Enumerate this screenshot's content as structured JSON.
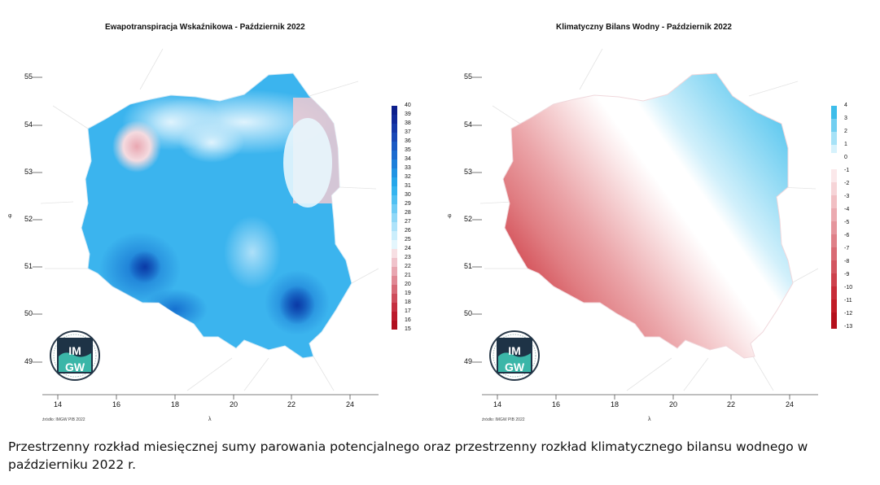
{
  "maps": [
    {
      "title": "Ewapotranspiracja Wskaźnikowa - Październik 2022",
      "lat_ticks": [
        "55",
        "54",
        "53",
        "52",
        "51",
        "50",
        "49"
      ],
      "lon_ticks": [
        "14",
        "16",
        "18",
        "20",
        "22",
        "24"
      ],
      "legend_values": [
        "40",
        "39",
        "38",
        "37",
        "36",
        "35",
        "34",
        "33",
        "32",
        "31",
        "30",
        "29",
        "28",
        "27",
        "26",
        "25",
        "24",
        "23",
        "22",
        "21",
        "20",
        "19",
        "18",
        "17",
        "16",
        "15"
      ],
      "source": "źródło: IMGW PIB 2022",
      "xlabel": "λ",
      "ylabel": "φ",
      "logo": "IMGW"
    },
    {
      "title": "Klimatyczny Bilans Wodny - Październik 2022",
      "lat_ticks": [
        "55",
        "54",
        "53",
        "52",
        "51",
        "50",
        "49"
      ],
      "lon_ticks": [
        "14",
        "16",
        "18",
        "20",
        "22",
        "24"
      ],
      "legend_values": [
        "4",
        "3",
        "2",
        "1",
        "0",
        "-1",
        "-2",
        "-3",
        "-4",
        "-5",
        "-6",
        "-7",
        "-8",
        "-9",
        "-10",
        "-11",
        "-12",
        "-13"
      ],
      "source": "źródło: IMGW PIB 2022",
      "xlabel": "λ",
      "ylabel": "φ",
      "logo": "IMGW"
    }
  ],
  "caption": "Przestrzenny rozkład miesięcznej sumy parowania potencjalnego oraz przestrzenny rozkład klimatycznego bilansu wodnego w październiku 2022 r.",
  "colors": {
    "et_high": "#0d1f8c",
    "et_mid": "#2bb0ec",
    "et_low_blue": "#d9f1fc",
    "et_low_red": "#b81d26",
    "kbw_pos": "#3dbdea",
    "kbw_zero": "#ffffff",
    "kbw_neg": "#c5141d"
  }
}
